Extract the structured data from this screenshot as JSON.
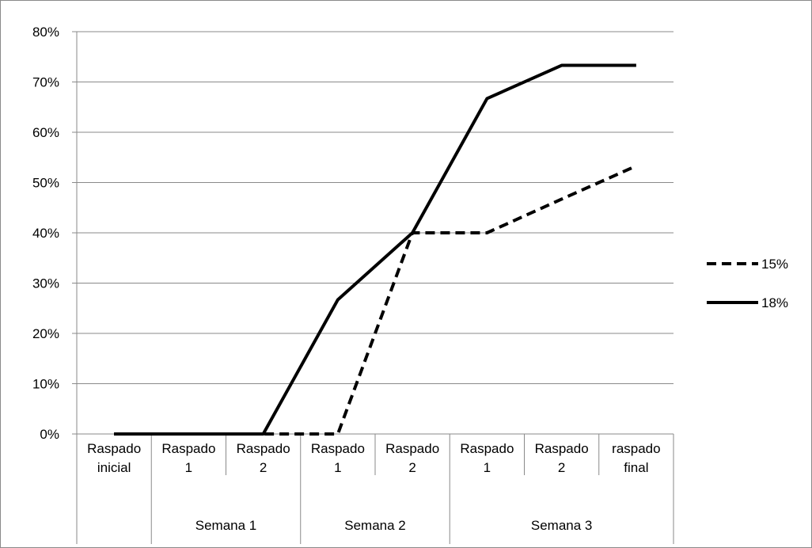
{
  "chart_data": {
    "type": "line",
    "title": "",
    "xlabel": "",
    "ylabel": "",
    "ylim": [
      0,
      0.8
    ],
    "ytick_step": 0.1,
    "ytick_labels": [
      "0%",
      "10%",
      "20%",
      "30%",
      "40%",
      "50%",
      "60%",
      "70%",
      "80%"
    ],
    "grid": true,
    "legend_position": "right",
    "categories": [
      {
        "line1": "Raspado",
        "line2": "inicial",
        "group": ""
      },
      {
        "line1": "Raspado",
        "line2": "1",
        "group": "Semana 1"
      },
      {
        "line1": "Raspado",
        "line2": "2",
        "group": "Semana 1"
      },
      {
        "line1": "Raspado",
        "line2": "1",
        "group": "Semana 2"
      },
      {
        "line1": "Raspado",
        "line2": "2",
        "group": "Semana 2"
      },
      {
        "line1": "Raspado",
        "line2": "1",
        "group": "Semana 3"
      },
      {
        "line1": "Raspado",
        "line2": "2",
        "group": "Semana 3"
      },
      {
        "line1": "raspado",
        "line2": "final",
        "group": "Semana 3"
      }
    ],
    "groups": [
      {
        "label": "",
        "start": 0,
        "end": 0
      },
      {
        "label": "Semana 1",
        "start": 1,
        "end": 2
      },
      {
        "label": "Semana 2",
        "start": 3,
        "end": 4
      },
      {
        "label": "Semana 3",
        "start": 5,
        "end": 7
      }
    ],
    "series": [
      {
        "name": "15%",
        "style": "dashed",
        "color": "#000000",
        "values": [
          0,
          0,
          0,
          0,
          0.4,
          0.4,
          0.467,
          0.533
        ]
      },
      {
        "name": "18%",
        "style": "solid",
        "color": "#000000",
        "values": [
          0,
          0,
          0,
          0.267,
          0.4,
          0.667,
          0.733,
          0.733
        ]
      }
    ]
  }
}
